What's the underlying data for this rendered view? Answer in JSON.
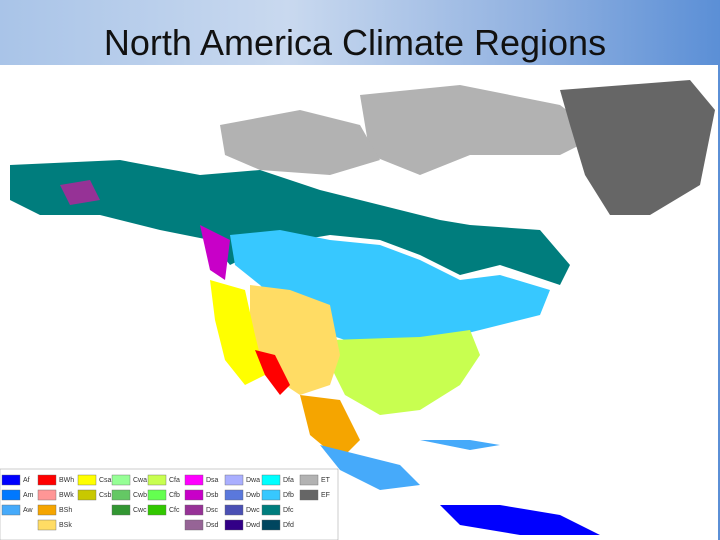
{
  "title": "North America Climate Regions",
  "legend": {
    "columns": [
      [
        {
          "code": "Af",
          "color": "#0000fe"
        },
        {
          "code": "Am",
          "color": "#0078ff"
        },
        {
          "code": "Aw",
          "color": "#46aafa"
        }
      ],
      [
        {
          "code": "BWh",
          "color": "#ff0000"
        },
        {
          "code": "BWk",
          "color": "#ff9696"
        },
        {
          "code": "BSh",
          "color": "#f5a500"
        },
        {
          "code": "BSk",
          "color": "#ffdc64"
        }
      ],
      [
        {
          "code": "Csa",
          "color": "#ffff00"
        },
        {
          "code": "Csb",
          "color": "#c8c800"
        }
      ],
      [
        {
          "code": "Cwa",
          "color": "#96ff96"
        },
        {
          "code": "Cwb",
          "color": "#64c864"
        },
        {
          "code": "Cwc",
          "color": "#329632"
        }
      ],
      [
        {
          "code": "Cfa",
          "color": "#c8ff50"
        },
        {
          "code": "Cfb",
          "color": "#64ff50"
        },
        {
          "code": "Cfc",
          "color": "#32c800"
        }
      ],
      [
        {
          "code": "Dsa",
          "color": "#ff00ff"
        },
        {
          "code": "Dsb",
          "color": "#c800c8"
        },
        {
          "code": "Dsc",
          "color": "#963296"
        },
        {
          "code": "Dsd",
          "color": "#966496"
        }
      ],
      [
        {
          "code": "Dwa",
          "color": "#aaafff"
        },
        {
          "code": "Dwb",
          "color": "#5a78dc"
        },
        {
          "code": "Dwc",
          "color": "#4b50b4"
        },
        {
          "code": "Dwd",
          "color": "#320087"
        }
      ],
      [
        {
          "code": "Dfa",
          "color": "#00ffff"
        },
        {
          "code": "Dfb",
          "color": "#37c8ff"
        },
        {
          "code": "Dfc",
          "color": "#007d7d"
        },
        {
          "code": "Dfd",
          "color": "#00465f"
        }
      ],
      [
        {
          "code": "ET",
          "color": "#b2b2b2"
        },
        {
          "code": "EF",
          "color": "#666666"
        }
      ]
    ]
  }
}
